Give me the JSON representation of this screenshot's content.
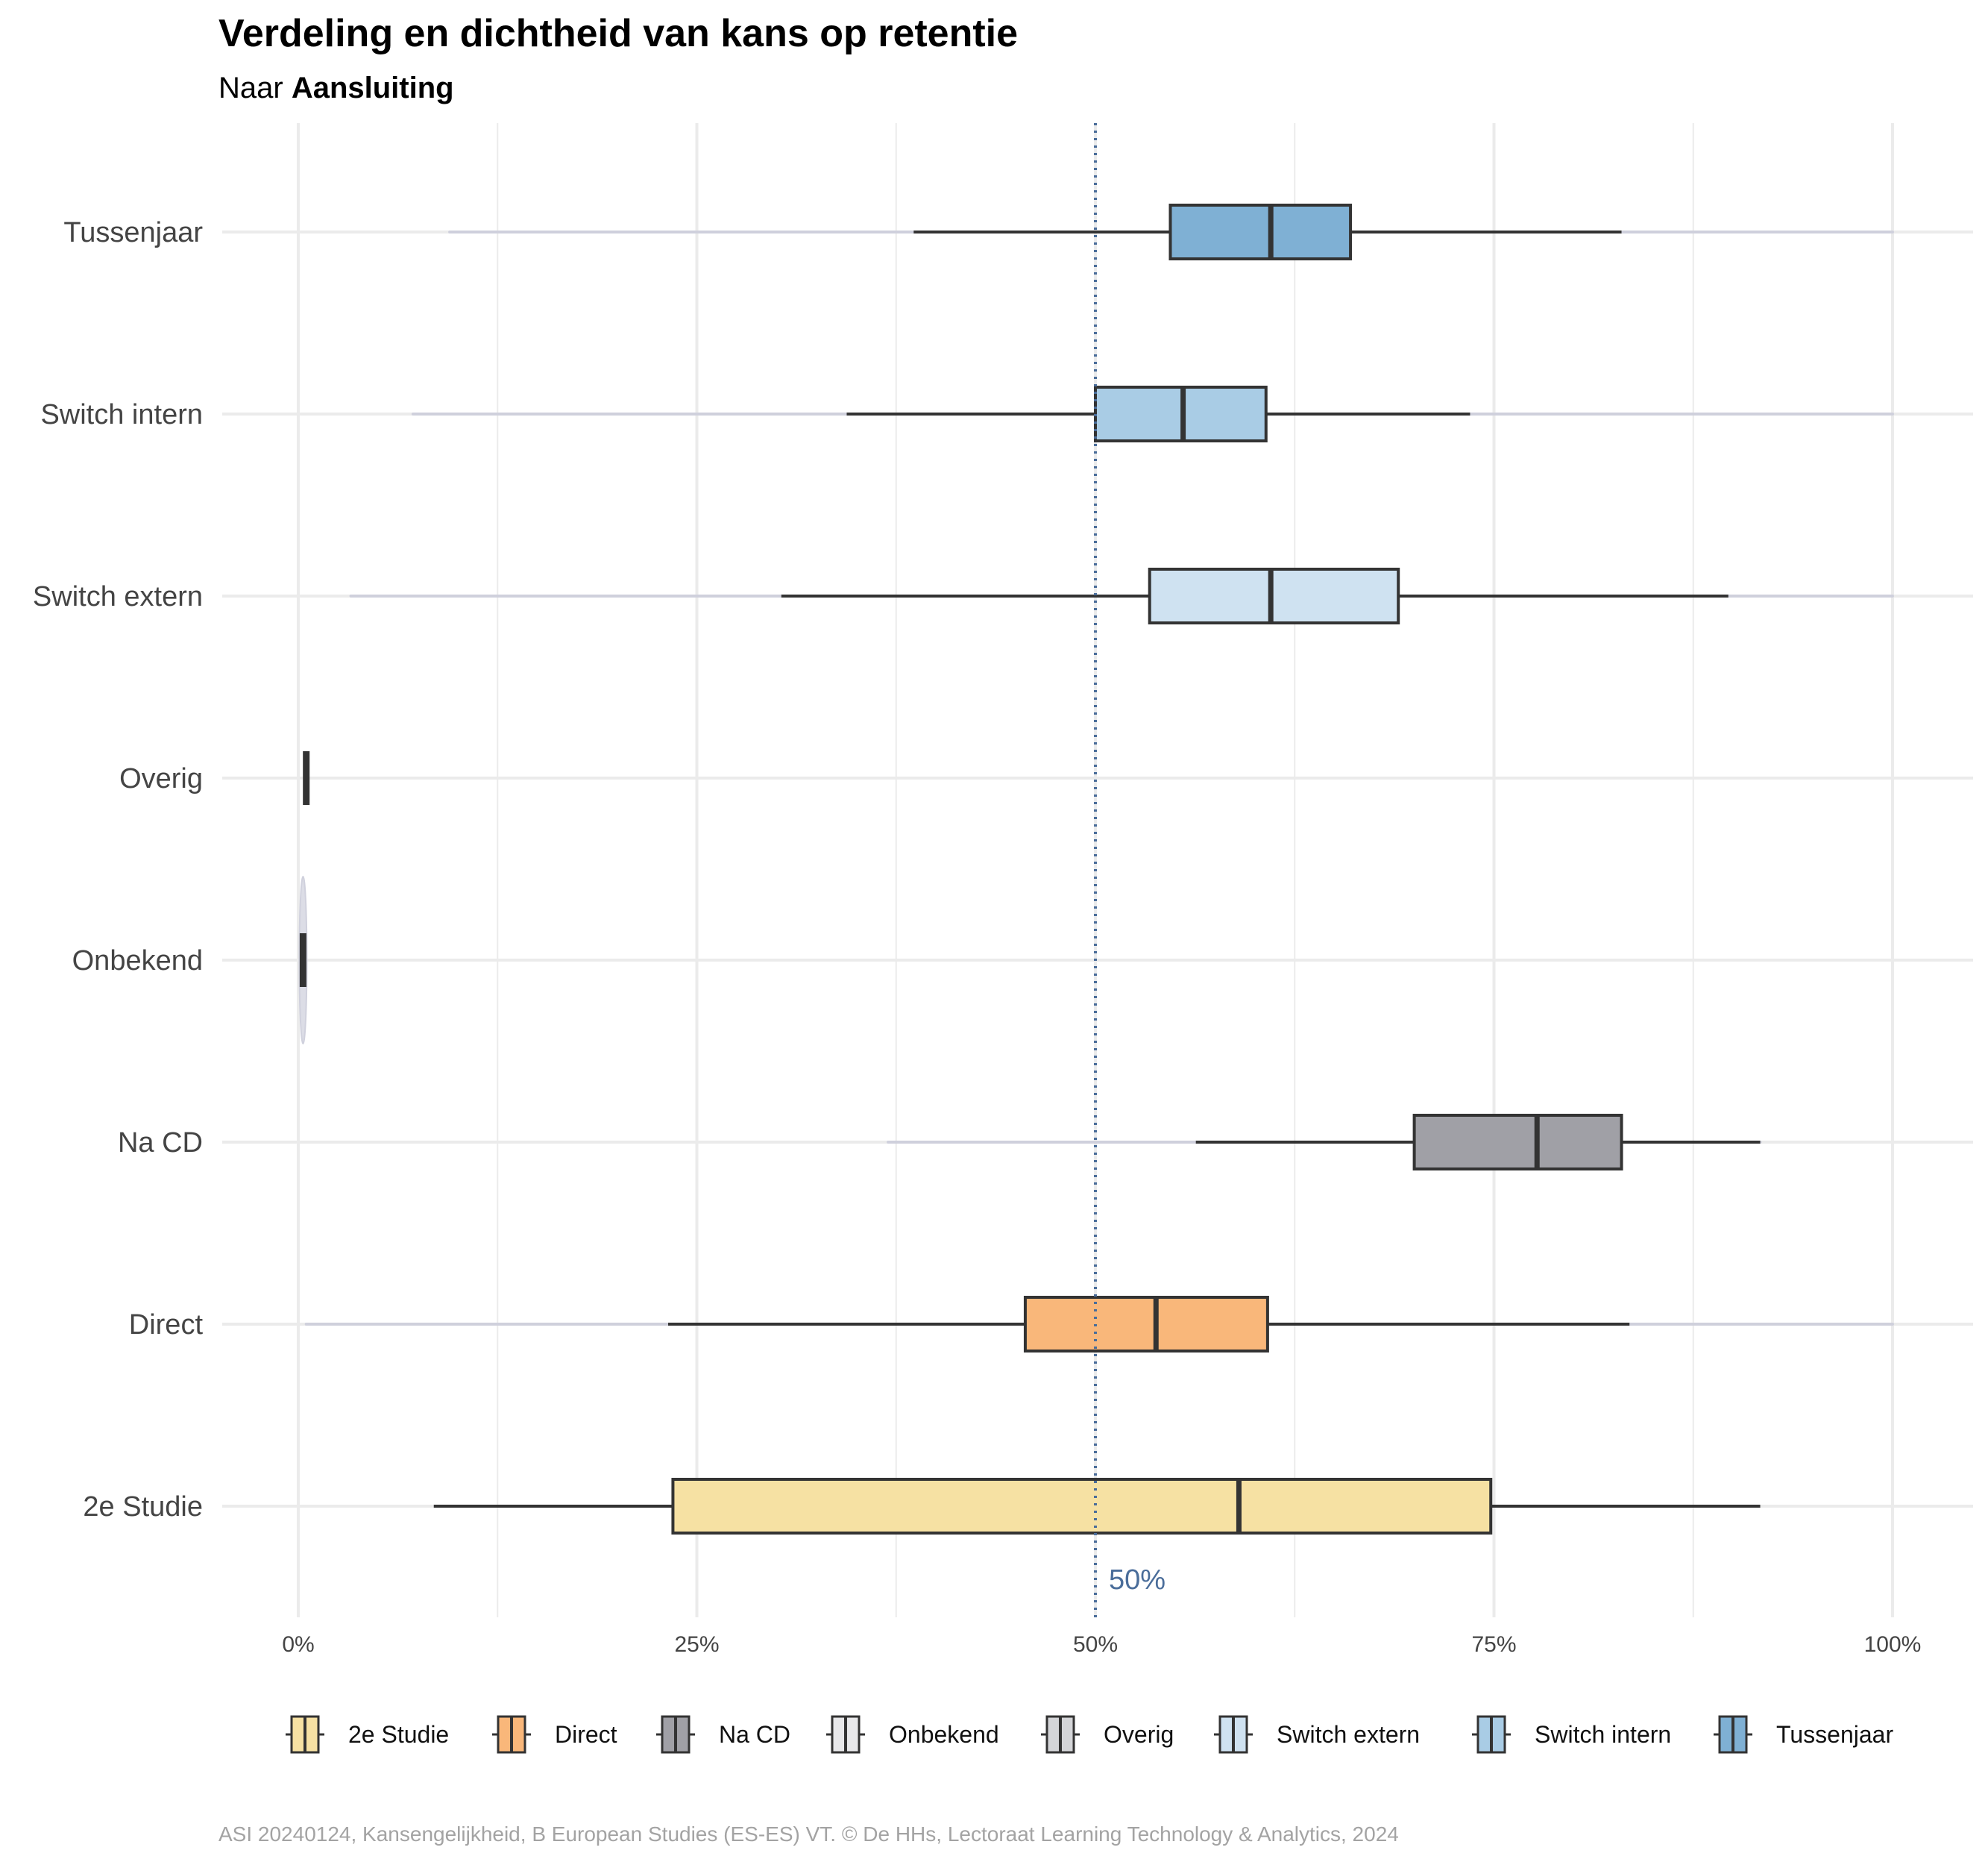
{
  "title": "Verdeling en dichtheid van kans op retentie",
  "subtitle_prefix": "Naar ",
  "subtitle_bold": "Aansluiting",
  "caption": "ASI 20240124, Kansengelijkheid, B European Studies (ES-ES) VT. © De HHs, Lectoraat Learning Technology & Analytics, 2024",
  "reference_line": {
    "value": 0.5,
    "label": "50%",
    "color": "#4a6d9a"
  },
  "chart_data": {
    "type": "boxplot",
    "orientation": "horizontal",
    "xlim": [
      0,
      1
    ],
    "x_ticks": [
      0,
      0.25,
      0.5,
      0.75,
      1
    ],
    "x_tick_labels": [
      "0%",
      "25%",
      "50%",
      "75%",
      "100%"
    ],
    "grid": true,
    "legend_position": "bottom",
    "categories_bottom_to_top": [
      "2e Studie",
      "Direct",
      "Na CD",
      "Onbekend",
      "Overig",
      "Switch extern",
      "Switch intern",
      "Tussenjaar"
    ],
    "series": [
      {
        "name": "2e Studie",
        "color": "#f6e1a3",
        "min": 0.085,
        "q1": 0.235,
        "median": 0.59,
        "q3": 0.748,
        "max": 0.917,
        "range": [
          0.235,
          0.748
        ]
      },
      {
        "name": "Direct",
        "color": "#f9b77a",
        "min": 0.232,
        "q1": 0.456,
        "median": 0.538,
        "q3": 0.608,
        "max": 0.835,
        "range": [
          0.005,
          1.0
        ]
      },
      {
        "name": "Na CD",
        "color": "#a0a0a6",
        "min": 0.563,
        "q1": 0.7,
        "median": 0.777,
        "q3": 0.83,
        "max": 0.917,
        "range": [
          0.37,
          0.917
        ]
      },
      {
        "name": "Onbekend",
        "color": "#e8e8ea",
        "min": 0.003,
        "q1": 0.003,
        "median": 0.003,
        "q3": 0.003,
        "max": 0.003,
        "range": [
          0.003,
          0.003
        ]
      },
      {
        "name": "Overig",
        "color": "#d4d5d8",
        "min": 0.005,
        "q1": 0.005,
        "median": 0.005,
        "q3": 0.005,
        "max": 0.005,
        "range": [
          0.005,
          0.005
        ]
      },
      {
        "name": "Switch extern",
        "color": "#cfe2f1",
        "min": 0.303,
        "q1": 0.534,
        "median": 0.61,
        "q3": 0.69,
        "max": 0.897,
        "range": [
          0.033,
          1.0
        ]
      },
      {
        "name": "Switch intern",
        "color": "#a9cce5",
        "min": 0.344,
        "q1": 0.5,
        "median": 0.555,
        "q3": 0.607,
        "max": 0.735,
        "range": [
          0.072,
          1.0
        ]
      },
      {
        "name": "Tussenjaar",
        "color": "#7fb0d4",
        "min": 0.386,
        "q1": 0.547,
        "median": 0.61,
        "q3": 0.66,
        "max": 0.83,
        "range": [
          0.095,
          1.0
        ]
      }
    ]
  }
}
